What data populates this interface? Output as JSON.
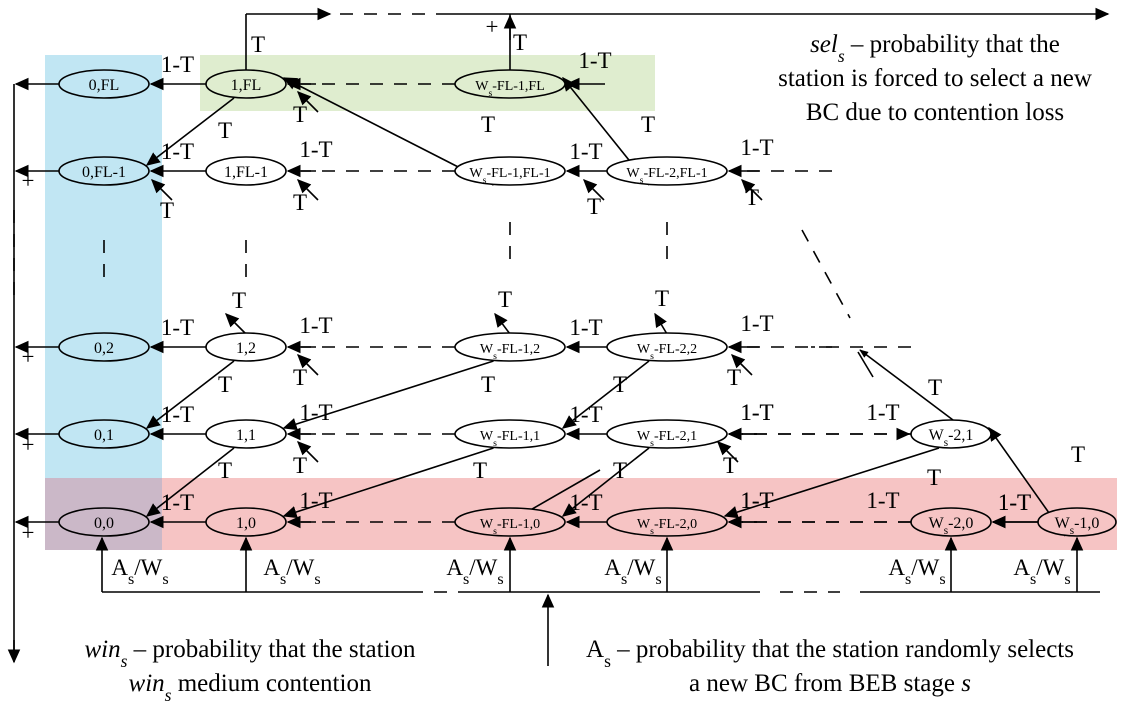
{
  "colors": {
    "blue_region": "#c1e6f3",
    "green_region": "#dfedcf",
    "red_region": "#f6c4c4",
    "overlap_region": "#cbb8c8",
    "red_node_fill": "#f6c4c4"
  },
  "nodes": {
    "r0": [
      "0,0",
      "1,0",
      "Ws-FL-1,0",
      "Ws-FL-2,0",
      "Ws-2,0",
      "Ws-1,0"
    ],
    "r1": [
      "0,1",
      "1,1",
      "Ws-FL-1,1",
      "Ws-FL-2,1",
      "Ws-2,1"
    ],
    "r2": [
      "0,2",
      "1,2",
      "Ws-FL-1,2",
      "Ws-FL-2,2"
    ],
    "rfl1": [
      "0,FL-1",
      "1,FL-1",
      "Ws-FL-1,FL-1",
      "Ws-FL-2,FL-1"
    ],
    "rfl": [
      "0,FL",
      "1,FL",
      "Ws-FL-1,FL"
    ]
  },
  "labels": {
    "one_minus_t": "1-T",
    "t": "T",
    "plus": "+",
    "as_ws": "As/Ws"
  },
  "captions": {
    "sel": [
      "sels – probability that the",
      "station is forced to select a new",
      "BC due to contention loss"
    ],
    "win": [
      "wins – probability that the station",
      "wins medium contention"
    ],
    "as": [
      "As – probability that the station randomly selects",
      "a new BC from BEB stage s"
    ]
  }
}
